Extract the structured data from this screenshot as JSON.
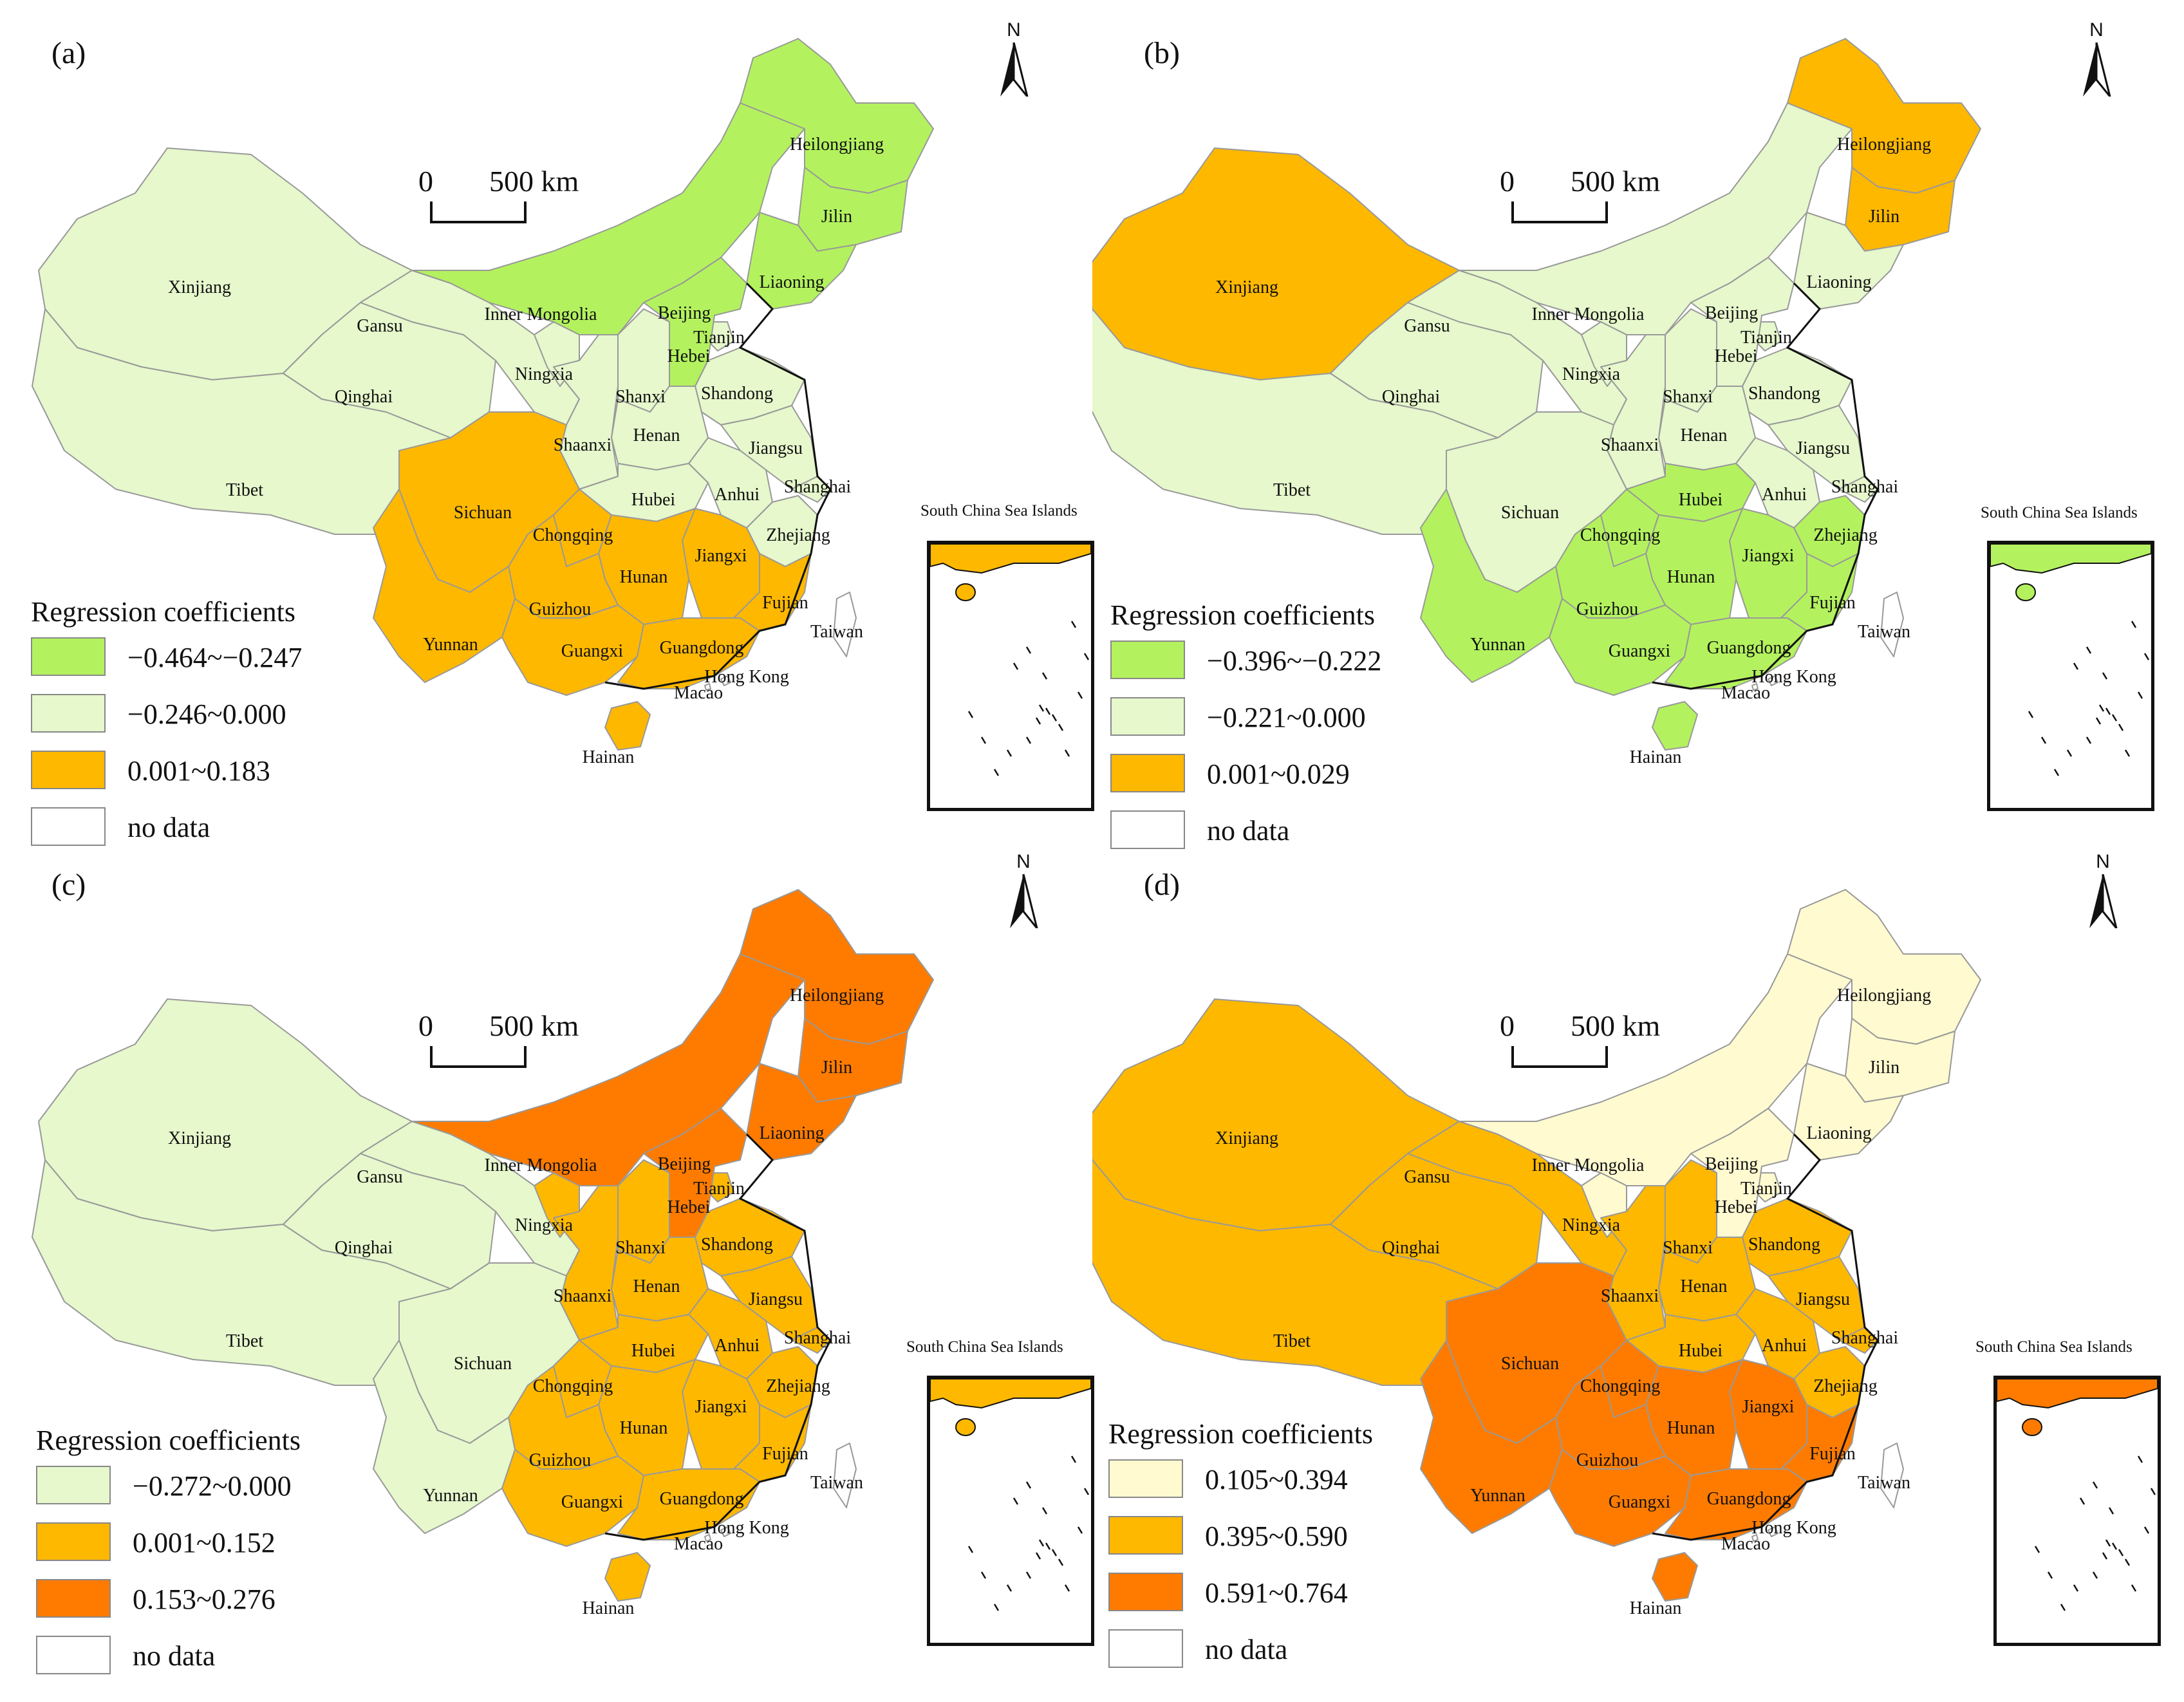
{
  "shared": {
    "north_label": "N",
    "scale_zero": "0",
    "scale_distance": "500 km",
    "inset_title": "South China Sea Islands",
    "legend_title": "Regression coefficients",
    "no_data_label": "no data",
    "colors": {
      "dark_green": "#b3f25e",
      "light_green": "#e6f8cc",
      "orange": "#ffb800",
      "dark_orange": "#ff7b00",
      "pale_yellow": "#fffad0",
      "no_data": "#ffffff",
      "boundary": "#999999"
    }
  },
  "region_names": {
    "xinjiang": "Xinjiang",
    "tibet": "Tibet",
    "qinghai": "Qinghai",
    "gansu": "Gansu",
    "inner_mongolia": "Inner Mongolia",
    "ningxia": "Ningxia",
    "shaanxi": "Shaanxi",
    "shanxi": "Shanxi",
    "heilongjiang": "Heilongjiang",
    "jilin": "Jilin",
    "liaoning": "Liaoning",
    "beijing": "Beijing",
    "tianjin": "Tianjin",
    "hebei": "Hebei",
    "shandong": "Shandong",
    "henan": "Henan",
    "jiangsu": "Jiangsu",
    "anhui": "Anhui",
    "shanghai": "Shanghai",
    "hubei": "Hubei",
    "sichuan": "Sichuan",
    "chongqing": "Chongqing",
    "zhejiang": "Zhejiang",
    "jiangxi": "Jiangxi",
    "hunan": "Hunan",
    "guizhou": "Guizhou",
    "yunnan": "Yunnan",
    "fujian": "Fujian",
    "guangxi": "Guangxi",
    "guangdong": "Guangdong",
    "taiwan": "Taiwan",
    "hongkong": "Hong Kong",
    "macao": "Macao",
    "hainan": "Hainan"
  },
  "panels": [
    {
      "label": "(a)",
      "legend": [
        {
          "range": "−0.464~−0.247",
          "color": "#b3f25e"
        },
        {
          "range": "−0.246~0.000",
          "color": "#e6f8cc"
        },
        {
          "range": "0.001~0.183",
          "color": "#ffb800"
        }
      ],
      "regions": {
        "xinjiang": "light_green",
        "tibet": "light_green",
        "qinghai": "light_green",
        "gansu": "light_green",
        "inner_mongolia": "dark_green",
        "ningxia": "light_green",
        "shaanxi": "light_green",
        "shanxi": "light_green",
        "heilongjiang": "dark_green",
        "jilin": "dark_green",
        "liaoning": "dark_green",
        "beijing": "dark_green",
        "tianjin": "light_green",
        "hebei": "dark_green",
        "shandong": "light_green",
        "henan": "light_green",
        "jiangsu": "light_green",
        "anhui": "light_green",
        "shanghai": "light_green",
        "hubei": "light_green",
        "sichuan": "orange",
        "chongqing": "orange",
        "zhejiang": "light_green",
        "jiangxi": "orange",
        "hunan": "orange",
        "guizhou": "orange",
        "yunnan": "orange",
        "fujian": "orange",
        "guangxi": "orange",
        "guangdong": "orange",
        "taiwan": "no_data",
        "hongkong": "no_data",
        "macao": "no_data",
        "hainan": "orange"
      },
      "inset_fill": "orange"
    },
    {
      "label": "(b)",
      "legend": [
        {
          "range": "−0.396~−0.222",
          "color": "#b3f25e"
        },
        {
          "range": "−0.221~0.000",
          "color": "#e6f8cc"
        },
        {
          "range": "0.001~0.029",
          "color": "#ffb800"
        }
      ],
      "regions": {
        "xinjiang": "orange",
        "tibet": "light_green",
        "qinghai": "light_green",
        "gansu": "light_green",
        "inner_mongolia": "light_green",
        "ningxia": "light_green",
        "shaanxi": "light_green",
        "shanxi": "light_green",
        "heilongjiang": "orange",
        "jilin": "orange",
        "liaoning": "light_green",
        "beijing": "light_green",
        "tianjin": "light_green",
        "hebei": "light_green",
        "shandong": "light_green",
        "henan": "light_green",
        "jiangsu": "light_green",
        "anhui": "light_green",
        "shanghai": "light_green",
        "hubei": "dark_green",
        "sichuan": "light_green",
        "chongqing": "dark_green",
        "zhejiang": "dark_green",
        "jiangxi": "dark_green",
        "hunan": "dark_green",
        "guizhou": "dark_green",
        "yunnan": "dark_green",
        "fujian": "dark_green",
        "guangxi": "dark_green",
        "guangdong": "dark_green",
        "taiwan": "no_data",
        "hongkong": "no_data",
        "macao": "no_data",
        "hainan": "dark_green"
      },
      "inset_fill": "dark_green"
    },
    {
      "label": "(c)",
      "legend": [
        {
          "range": "−0.272~0.000",
          "color": "#e6f8cc"
        },
        {
          "range": "0.001~0.152",
          "color": "#ffb800"
        },
        {
          "range": "0.153~0.276",
          "color": "#ff7b00"
        }
      ],
      "regions": {
        "xinjiang": "light_green",
        "tibet": "light_green",
        "qinghai": "light_green",
        "gansu": "light_green",
        "inner_mongolia": "dark_orange",
        "ningxia": "orange",
        "shaanxi": "orange",
        "shanxi": "orange",
        "heilongjiang": "dark_orange",
        "jilin": "dark_orange",
        "liaoning": "dark_orange",
        "beijing": "dark_orange",
        "tianjin": "orange",
        "hebei": "dark_orange",
        "shandong": "orange",
        "henan": "orange",
        "jiangsu": "orange",
        "anhui": "orange",
        "shanghai": "orange",
        "hubei": "orange",
        "sichuan": "light_green",
        "chongqing": "orange",
        "zhejiang": "orange",
        "jiangxi": "orange",
        "hunan": "orange",
        "guizhou": "orange",
        "yunnan": "light_green",
        "fujian": "orange",
        "guangxi": "orange",
        "guangdong": "orange",
        "taiwan": "no_data",
        "hongkong": "no_data",
        "macao": "no_data",
        "hainan": "orange"
      },
      "inset_fill": "orange"
    },
    {
      "label": "(d)",
      "legend": [
        {
          "range": "0.105~0.394",
          "color": "#fffad0"
        },
        {
          "range": "0.395~0.590",
          "color": "#ffb800"
        },
        {
          "range": "0.591~0.764",
          "color": "#ff7b00"
        }
      ],
      "regions": {
        "xinjiang": "orange",
        "tibet": "orange",
        "qinghai": "orange",
        "gansu": "orange",
        "inner_mongolia": "pale_yellow",
        "ningxia": "pale_yellow",
        "shaanxi": "orange",
        "shanxi": "orange",
        "heilongjiang": "pale_yellow",
        "jilin": "pale_yellow",
        "liaoning": "pale_yellow",
        "beijing": "pale_yellow",
        "tianjin": "pale_yellow",
        "hebei": "pale_yellow",
        "shandong": "orange",
        "henan": "orange",
        "jiangsu": "orange",
        "anhui": "orange",
        "shanghai": "orange",
        "hubei": "orange",
        "sichuan": "dark_orange",
        "chongqing": "dark_orange",
        "zhejiang": "orange",
        "jiangxi": "dark_orange",
        "hunan": "dark_orange",
        "guizhou": "dark_orange",
        "yunnan": "dark_orange",
        "fujian": "dark_orange",
        "guangxi": "dark_orange",
        "guangdong": "dark_orange",
        "taiwan": "no_data",
        "hongkong": "no_data",
        "macao": "no_data",
        "hainan": "dark_orange"
      },
      "inset_fill": "dark_orange"
    }
  ]
}
